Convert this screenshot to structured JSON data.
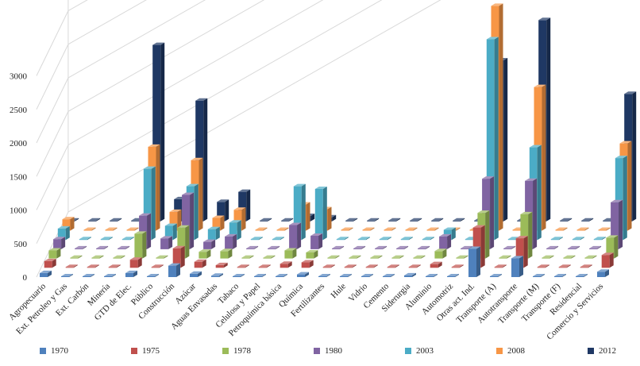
{
  "chart_data": {
    "type": "bar",
    "title": "",
    "xlabel": "",
    "ylabel": "",
    "ylim": [
      0,
      3500
    ],
    "yticks": [
      0,
      500,
      1000,
      1500,
      2000,
      2500,
      3000
    ],
    "grid": true,
    "legend_position": "bottom",
    "categories": [
      "Agropecuario",
      "Ext. Petroleo y Gas",
      "Ext. Carbón",
      "Minería",
      "GTD de Elec.",
      "Público",
      "Construcción",
      "Azúcar",
      "Aguas Envasadas",
      "Tabaco",
      "Celulosa y Papel",
      "Petroquímica básica",
      "Química",
      "Fertilizantes",
      "Hule",
      "Vidrio",
      "Cemento",
      "Siderurgia",
      "Aluminio",
      "Automotriz",
      "Otras act. Ind.",
      "Transporte (A)",
      "Autotransporte",
      "Transporte (M)",
      "Transporte (F)",
      "Residencial",
      "Comercio y Servicios"
    ],
    "series": [
      {
        "name": "1970",
        "color": "#4f81bd",
        "values": [
          60,
          5,
          5,
          5,
          60,
          5,
          170,
          50,
          20,
          5,
          5,
          10,
          40,
          10,
          5,
          5,
          5,
          25,
          5,
          5,
          420,
          5,
          280,
          5,
          5,
          5,
          80
        ]
      },
      {
        "name": "1975",
        "color": "#c0504d",
        "values": [
          100,
          5,
          5,
          5,
          120,
          5,
          290,
          90,
          40,
          5,
          10,
          60,
          80,
          10,
          5,
          5,
          5,
          5,
          55,
          5,
          600,
          5,
          440,
          5,
          5,
          5,
          190
        ]
      },
      {
        "name": "1978",
        "color": "#9bbb59",
        "values": [
          120,
          5,
          5,
          5,
          370,
          5,
          460,
          100,
          110,
          5,
          5,
          120,
          90,
          10,
          5,
          5,
          5,
          5,
          110,
          5,
          680,
          5,
          660,
          5,
          5,
          5,
          310
        ]
      },
      {
        "name": "1980",
        "color": "#8064a2",
        "values": [
          150,
          5,
          5,
          5,
          500,
          160,
          810,
          110,
          190,
          5,
          5,
          360,
          200,
          10,
          5,
          5,
          5,
          5,
          190,
          5,
          1050,
          5,
          1020,
          5,
          5,
          5,
          700
        ]
      },
      {
        "name": "2003",
        "color": "#4bacc6",
        "values": [
          170,
          5,
          5,
          5,
          1060,
          210,
          800,
          160,
          260,
          5,
          5,
          800,
          760,
          5,
          5,
          5,
          5,
          5,
          150,
          5,
          2990,
          5,
          1380,
          5,
          5,
          5,
          1220
        ]
      },
      {
        "name": "2008",
        "color": "#f79646",
        "values": [
          170,
          5,
          5,
          5,
          1250,
          280,
          1050,
          190,
          310,
          5,
          5,
          390,
          320,
          5,
          5,
          5,
          5,
          5,
          5,
          5,
          3350,
          5,
          2140,
          5,
          5,
          5,
          1300
        ]
      },
      {
        "name": "2012",
        "color": "#1f3864",
        "values": [
          5,
          5,
          5,
          5,
          2630,
          330,
          1800,
          290,
          440,
          5,
          5,
          80,
          60,
          5,
          5,
          5,
          5,
          5,
          5,
          5,
          2400,
          5,
          3000,
          5,
          5,
          5,
          1900
        ]
      }
    ]
  }
}
